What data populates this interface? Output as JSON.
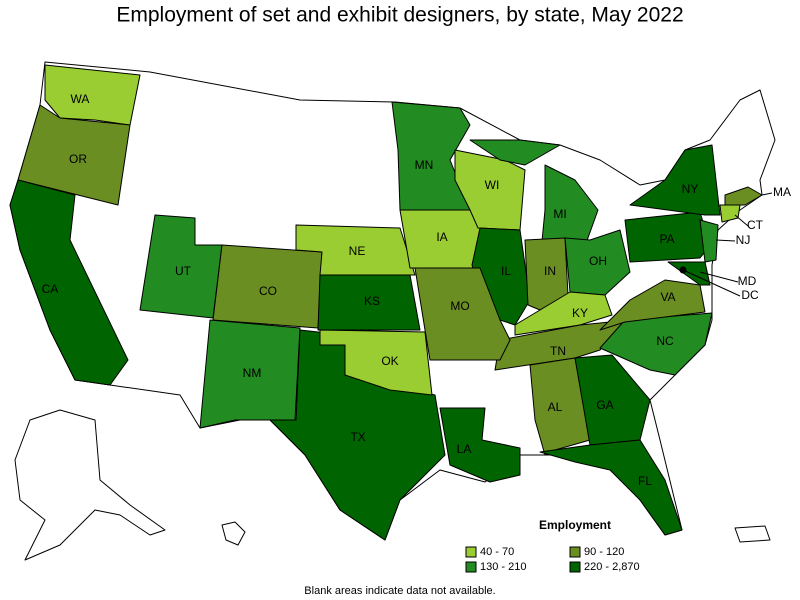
{
  "title": "Employment of set and exhibit designers, by state, May 2022",
  "legend": {
    "title": "Employment",
    "items": [
      {
        "label": "40 - 70",
        "color": "#9acd32"
      },
      {
        "label": "90 - 120",
        "color": "#6b8e23"
      },
      {
        "label": "130 - 210",
        "color": "#228b22"
      },
      {
        "label": "220 - 2,870",
        "color": "#006400"
      }
    ]
  },
  "states": [
    {
      "abbr": "WA",
      "class": 0
    },
    {
      "abbr": "OR",
      "class": 1
    },
    {
      "abbr": "CA",
      "class": 3
    },
    {
      "abbr": "UT",
      "class": 2
    },
    {
      "abbr": "CO",
      "class": 1
    },
    {
      "abbr": "NM",
      "class": 2
    },
    {
      "abbr": "TX",
      "class": 3
    },
    {
      "abbr": "OK",
      "class": 0
    },
    {
      "abbr": "KS",
      "class": 3
    },
    {
      "abbr": "NE",
      "class": 0
    },
    {
      "abbr": "IA",
      "class": 0
    },
    {
      "abbr": "MN",
      "class": 2
    },
    {
      "abbr": "WI",
      "class": 0
    },
    {
      "abbr": "MI",
      "class": 2
    },
    {
      "abbr": "IL",
      "class": 3
    },
    {
      "abbr": "IN",
      "class": 1
    },
    {
      "abbr": "OH",
      "class": 2
    },
    {
      "abbr": "KY",
      "class": 0
    },
    {
      "abbr": "TN",
      "class": 1
    },
    {
      "abbr": "MO",
      "class": 1
    },
    {
      "abbr": "LA",
      "class": 3
    },
    {
      "abbr": "AL",
      "class": 1
    },
    {
      "abbr": "GA",
      "class": 3
    },
    {
      "abbr": "FL",
      "class": 3
    },
    {
      "abbr": "NC",
      "class": 2
    },
    {
      "abbr": "VA",
      "class": 1
    },
    {
      "abbr": "PA",
      "class": 3
    },
    {
      "abbr": "NY",
      "class": 3
    },
    {
      "abbr": "NJ",
      "class": 2
    },
    {
      "abbr": "MD",
      "class": 3
    },
    {
      "abbr": "DC",
      "class": 3
    },
    {
      "abbr": "MA",
      "class": 1
    },
    {
      "abbr": "CT",
      "class": 0
    }
  ],
  "note": "Blank areas indicate data not available."
}
